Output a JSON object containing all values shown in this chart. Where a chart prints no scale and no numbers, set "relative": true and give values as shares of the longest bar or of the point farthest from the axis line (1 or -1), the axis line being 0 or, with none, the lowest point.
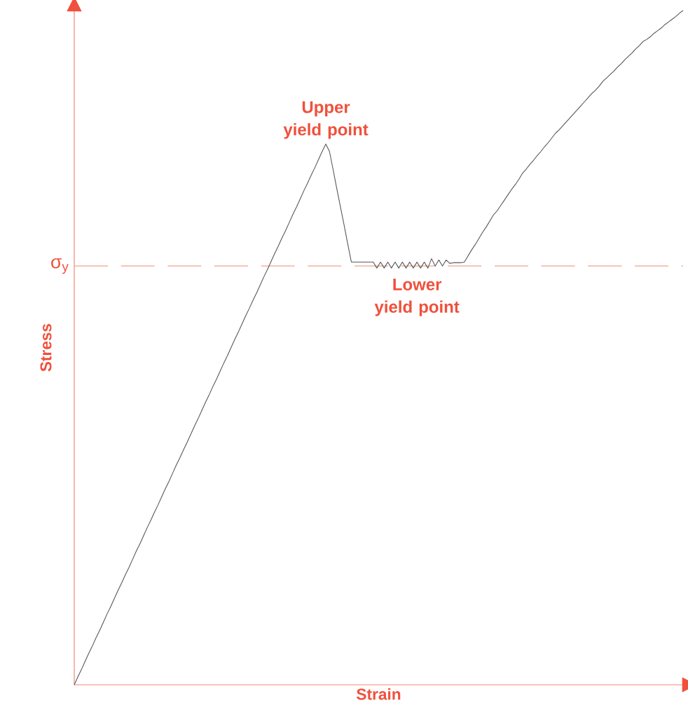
{
  "chart_data": {
    "type": "line",
    "relative": true,
    "xlabel": "Strain",
    "ylabel": "Stress",
    "color": "#555555",
    "categories": [
      null,
      null,
      null,
      null,
      null,
      null,
      null,
      null,
      null,
      null,
      null,
      null,
      null,
      null,
      null,
      null,
      null,
      null,
      null,
      null,
      null,
      null,
      null,
      null,
      null,
      null,
      null,
      null,
      null,
      null,
      null,
      null,
      null,
      null,
      null,
      null,
      null,
      null,
      null,
      null,
      null,
      null,
      null,
      null,
      null,
      null,
      null,
      null,
      null,
      null,
      null,
      null,
      null,
      null,
      null,
      null,
      null,
      null,
      null,
      null,
      null,
      null,
      null,
      null,
      null,
      null,
      null,
      null,
      null,
      null,
      null,
      null,
      null,
      null,
      null,
      null,
      null,
      null,
      null,
      null,
      null,
      null,
      null,
      null,
      null,
      null,
      null,
      null,
      null,
      null,
      null,
      null,
      null,
      null,
      null,
      null,
      null,
      null,
      null,
      null,
      null,
      null,
      null,
      null,
      null,
      null,
      null,
      null,
      null,
      null,
      null,
      null,
      null,
      null,
      null,
      null,
      null,
      null,
      null,
      null,
      null,
      null,
      null,
      null,
      null,
      null,
      null,
      null,
      null,
      null,
      null,
      null,
      null,
      null,
      null,
      null,
      null,
      null,
      null,
      null,
      null,
      null,
      null,
      null,
      null,
      null,
      null,
      null,
      null,
      null,
      null,
      null,
      null,
      null,
      null,
      null,
      null,
      null,
      null,
      null,
      null,
      null,
      null,
      null,
      null,
      null,
      null,
      null
    ],
    "values": [
      0,
      0.012,
      0.023,
      0.035,
      0.047,
      0.058,
      0.07,
      0.081,
      0.093,
      0.105,
      0.116,
      0.128,
      0.14,
      0.151,
      0.163,
      0.174,
      0.186,
      0.198,
      0.209,
      0.221,
      0.233,
      0.244,
      0.256,
      0.267,
      0.279,
      0.291,
      0.302,
      0.314,
      0.326,
      0.337,
      0.349,
      0.36,
      0.372,
      0.384,
      0.395,
      0.407,
      0.419,
      0.43,
      0.442,
      0.453,
      0.465,
      0.477,
      0.488,
      0.5,
      0.512,
      0.523,
      0.535,
      0.547,
      0.558,
      0.57,
      0.581,
      0.593,
      0.605,
      0.616,
      0.628,
      0.64,
      0.651,
      0.663,
      0.674,
      0.686,
      0.698,
      0.709,
      0.721,
      0.733,
      0.744,
      0.756,
      0.767,
      0.779,
      0.791,
      0.802,
      0.791,
      0.764,
      0.736,
      0.709,
      0.682,
      0.654,
      0.627,
      0.627,
      0.627,
      0.627,
      0.627,
      0.627,
      0.627,
      0.618,
      0.627,
      0.618,
      0.627,
      0.618,
      0.627,
      0.618,
      0.627,
      0.618,
      0.627,
      0.618,
      0.627,
      0.618,
      0.627,
      0.618,
      0.632,
      0.621,
      0.63,
      0.621,
      0.63,
      0.625,
      0.626,
      0.626,
      0.626,
      0.627,
      0.636,
      0.645,
      0.653,
      0.662,
      0.671,
      0.679,
      0.688,
      0.697,
      0.703,
      0.711,
      0.719,
      0.727,
      0.735,
      0.742,
      0.75,
      0.759,
      0.765,
      0.772,
      0.778,
      0.785,
      0.791,
      0.798,
      0.804,
      0.811,
      0.818,
      0.823,
      0.829,
      0.835,
      0.841,
      0.847,
      0.853,
      0.859,
      0.865,
      0.871,
      0.877,
      0.882,
      0.888,
      0.895,
      0.9,
      0.905,
      0.91,
      0.916,
      0.921,
      0.927,
      0.932,
      0.937,
      0.943,
      0.948,
      0.954,
      0.957,
      0.961,
      0.966,
      0.97,
      0.974,
      0.979,
      0.983,
      0.987,
      0.991,
      0.996,
      1
    ],
    "ref_lines": [
      {
        "axis": "y",
        "value": 0.621,
        "label": "σ$_{y}$",
        "color": "#f4a090",
        "line_style": "dashed"
      }
    ],
    "annotations": [
      "Upper yield point",
      "Lower yield point"
    ]
  }
}
